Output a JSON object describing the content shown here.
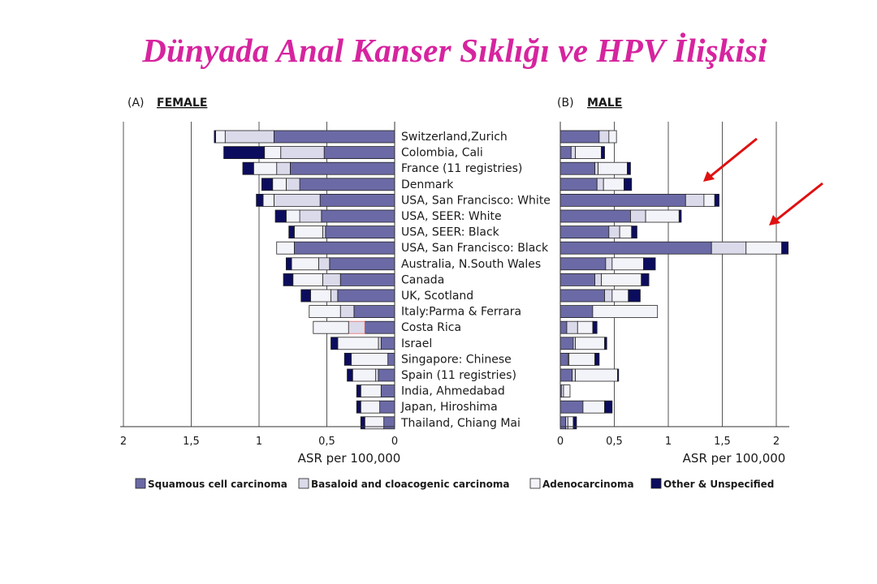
{
  "slide": {
    "title": "Dünyada Anal Kanser Sıklığı ve HPV İlişkisi"
  },
  "panels": {
    "female": {
      "letter": "(A)",
      "name": "FEMALE"
    },
    "male": {
      "letter": "(B)",
      "name": "MALE"
    }
  },
  "colors": {
    "Squamous cell carcinoma": "#6b6aa6",
    "Basaloid and cloacogenic carcinoma": "#dadaea",
    "Adenocarcinoma": "#f3f3fa",
    "Other & Unspecified": "#0c0c5e",
    "arrow": "#e01010",
    "costa_rica_highlight": "#e36a6a"
  },
  "chart_data": [
    {
      "type": "bar",
      "orientation": "horizontal",
      "stacked": true,
      "panel": "female",
      "xlabel": "ASR per 100,000",
      "xlim": [
        0,
        2
      ],
      "xticks": [
        "2",
        "1,5",
        "1",
        "0,5",
        "0"
      ],
      "categories": [
        "Switzerland,Zurich",
        "Colombia, Cali",
        "France (11 registries)",
        "Denmark",
        "USA, San Francisco: White",
        "USA, SEER: White",
        "USA, SEER: Black",
        "USA, San Francisco: Black",
        "Australia, N.South Wales",
        "Canada",
        "UK, Scotland",
        "Italy:Parma & Ferrara",
        "Costa Rica",
        "Israel",
        "Singapore: Chinese",
        "Spain (11 registries)",
        "India, Ahmedabad",
        "Japan, Hiroshima",
        "Thailand, Chiang Mai"
      ],
      "series": [
        {
          "name": "Squamous cell carcinoma",
          "values": [
            0.89,
            0.52,
            0.77,
            0.7,
            0.55,
            0.54,
            0.51,
            0.74,
            0.48,
            0.4,
            0.42,
            0.3,
            0.22,
            0.1,
            0.05,
            0.12,
            0.1,
            0.11,
            0.08
          ]
        },
        {
          "name": "Basaloid and cloacogenic carcinoma",
          "values": [
            0.36,
            0.32,
            0.1,
            0.1,
            0.34,
            0.16,
            0.02,
            0.0,
            0.08,
            0.13,
            0.05,
            0.1,
            0.12,
            0.02,
            0.0,
            0.02,
            0.0,
            0.0,
            0.0
          ]
        },
        {
          "name": "Adenocarcinoma",
          "values": [
            0.07,
            0.12,
            0.17,
            0.1,
            0.08,
            0.1,
            0.21,
            0.13,
            0.2,
            0.22,
            0.15,
            0.23,
            0.26,
            0.3,
            0.27,
            0.17,
            0.15,
            0.14,
            0.14
          ]
        },
        {
          "name": "Other & Unspecified",
          "values": [
            0.01,
            0.3,
            0.08,
            0.08,
            0.05,
            0.08,
            0.04,
            0.0,
            0.04,
            0.07,
            0.07,
            0.0,
            0.0,
            0.05,
            0.05,
            0.04,
            0.03,
            0.03,
            0.03
          ]
        }
      ]
    },
    {
      "type": "bar",
      "orientation": "horizontal",
      "stacked": true,
      "panel": "male",
      "xlabel": "ASR per 100,000",
      "xlim": [
        0,
        2.1
      ],
      "xticks": [
        "0",
        "0,5",
        "1",
        "1,5",
        "2"
      ],
      "categories": [
        "Switzerland,Zurich",
        "Colombia, Cali",
        "France (11 registries)",
        "Denmark",
        "USA, San Francisco: White",
        "USA, SEER: White",
        "USA, SEER: Black",
        "USA, San Francisco: Black",
        "Australia, N.South Wales",
        "Canada",
        "UK, Scotland",
        "Italy:Parma & Ferrara",
        "Costa Rica",
        "Israel",
        "Singapore: Chinese",
        "Spain (11 registries)",
        "India, Ahmedabad",
        "Japan, Hiroshima",
        "Thailand, Chiang Mai"
      ],
      "series": [
        {
          "name": "Squamous cell carcinoma",
          "values": [
            0.36,
            0.1,
            0.32,
            0.34,
            1.16,
            0.65,
            0.45,
            1.4,
            0.42,
            0.32,
            0.41,
            0.3,
            0.06,
            0.12,
            0.07,
            0.11,
            0.01,
            0.21,
            0.05
          ]
        },
        {
          "name": "Basaloid and cloacogenic carcinoma",
          "values": [
            0.09,
            0.04,
            0.03,
            0.06,
            0.17,
            0.14,
            0.1,
            0.32,
            0.06,
            0.06,
            0.07,
            0.0,
            0.1,
            0.02,
            0.01,
            0.03,
            0.02,
            0.0,
            0.02
          ]
        },
        {
          "name": "Adenocarcinoma",
          "values": [
            0.07,
            0.24,
            0.27,
            0.19,
            0.1,
            0.31,
            0.11,
            0.33,
            0.29,
            0.37,
            0.15,
            0.6,
            0.14,
            0.27,
            0.24,
            0.39,
            0.06,
            0.2,
            0.05
          ]
        },
        {
          "name": "Other & Unspecified",
          "values": [
            0.0,
            0.03,
            0.03,
            0.07,
            0.04,
            0.02,
            0.05,
            0.06,
            0.11,
            0.07,
            0.11,
            0.0,
            0.04,
            0.02,
            0.04,
            0.01,
            0.0,
            0.07,
            0.03
          ]
        }
      ]
    }
  ],
  "legend": [
    "Squamous cell carcinoma",
    "Basaloid and cloacogenic carcinoma",
    "Adenocarcinoma",
    "Other & Unspecified"
  ],
  "annotations": {
    "arrows_point_to_male": [
      "USA, San Francisco: White",
      "USA, San Francisco: Black"
    ],
    "highlighted_segment": {
      "panel": "female",
      "category": "Costa Rica",
      "series": "Basaloid and cloacogenic carcinoma"
    }
  }
}
